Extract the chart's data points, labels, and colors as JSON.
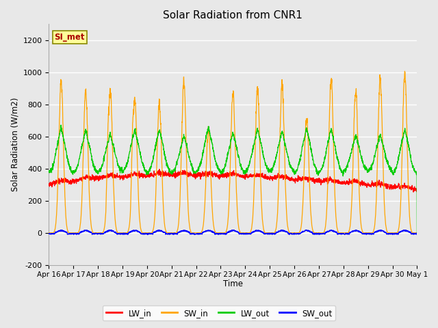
{
  "title": "Solar Radiation from CNR1",
  "ylabel": "Solar Radiation (W/m2)",
  "xlabel": "Time",
  "annotation": "SI_met",
  "ylim": [
    -200,
    1300
  ],
  "yticks": [
    -200,
    0,
    200,
    400,
    600,
    800,
    1000,
    1200
  ],
  "xtick_labels": [
    "Apr 16",
    "Apr 17",
    "Apr 18",
    "Apr 19",
    "Apr 20",
    "Apr 21",
    "Apr 22",
    "Apr 23",
    "Apr 24",
    "Apr 25",
    "Apr 26",
    "Apr 27",
    "Apr 28",
    "Apr 29",
    "Apr 30",
    "May 1"
  ],
  "colors": {
    "LW_in": "#ff0000",
    "SW_in": "#ffa500",
    "LW_out": "#00cc00",
    "SW_out": "#0000ff"
  },
  "background_color": "#e8e8e8",
  "plot_bg_color": "#e8e8e8",
  "grid_color": "#ffffff",
  "annotation_bg": "#ffff99",
  "annotation_border": "#888800",
  "annotation_text_color": "#aa0000",
  "sw_in_peaks": [
    975,
    920,
    925,
    880,
    840,
    975,
    665,
    910,
    935,
    960,
    750,
    1000,
    925,
    1000,
    1040
  ],
  "n_days": 15,
  "n_points_per_day": 144
}
